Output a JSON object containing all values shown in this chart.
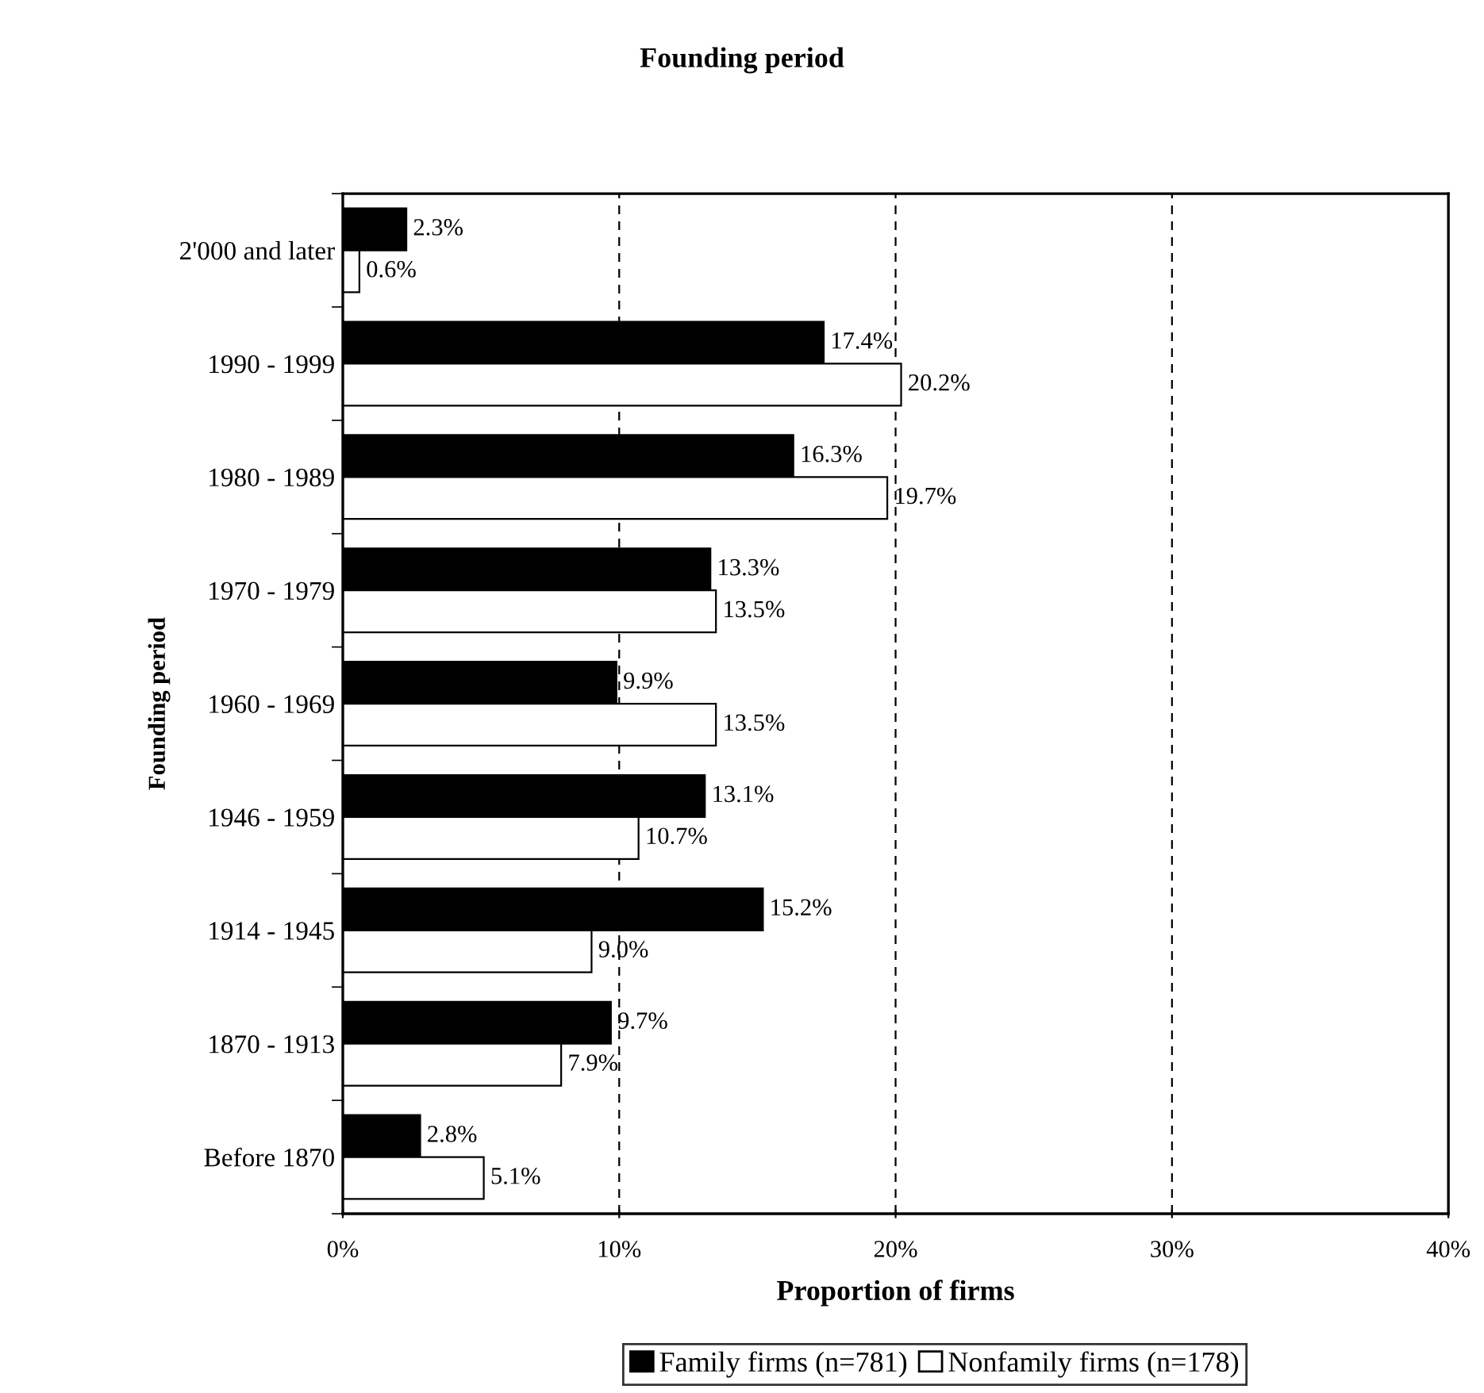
{
  "chart_data": {
    "type": "bar",
    "orientation": "horizontal",
    "title": "Founding period",
    "xlabel": "Proportion of firms",
    "ylabel": "Founding period",
    "categories": [
      "2'000 and later",
      "1990 - 1999",
      "1980 - 1989",
      "1970 - 1979",
      "1960 - 1969",
      "1946 - 1959",
      "1914 - 1945",
      "1870 - 1913",
      "Before 1870"
    ],
    "series": [
      {
        "name": "Family firms (n=781)",
        "color": "#000000",
        "values": [
          2.3,
          17.4,
          16.3,
          13.3,
          9.9,
          13.1,
          15.2,
          9.7,
          2.8
        ],
        "value_labels": [
          "2.3%",
          "17.4%",
          "16.3%",
          "13.3%",
          "9.9%",
          "13.1%",
          "15.2%",
          "9.7%",
          "2.8%"
        ]
      },
      {
        "name": "Nonfamily firms (n=178)",
        "color": "#ffffff",
        "values": [
          0.6,
          20.2,
          19.7,
          13.5,
          13.5,
          10.7,
          9.0,
          7.9,
          5.1
        ],
        "value_labels": [
          "0.6%",
          "20.2%",
          "19.7%",
          "13.5%",
          "13.5%",
          "10.7%",
          "9.0%",
          "7.9%",
          "5.1%"
        ]
      }
    ],
    "xlim": [
      0,
      40
    ],
    "xticks": [
      {
        "value": 0,
        "label": "0%"
      },
      {
        "value": 10,
        "label": "10%"
      },
      {
        "value": 20,
        "label": "20%"
      },
      {
        "value": 30,
        "label": "30%"
      },
      {
        "value": 40,
        "label": "40%"
      }
    ],
    "grid": "x",
    "legend": "bottom"
  }
}
